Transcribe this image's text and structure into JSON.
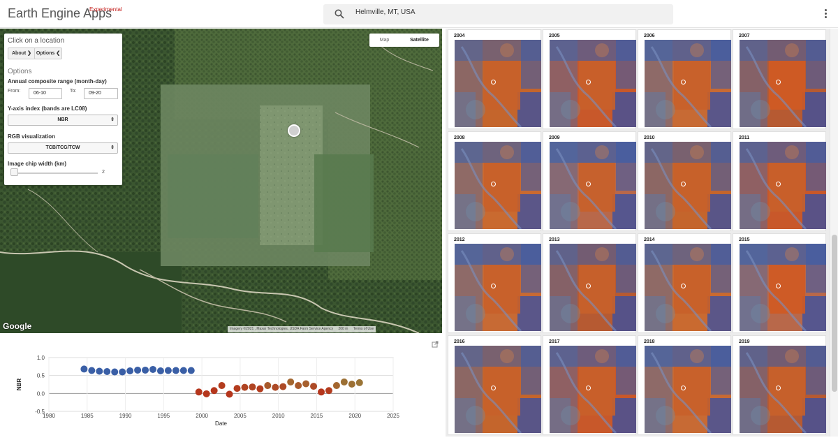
{
  "app": {
    "title": "Earth Engine Apps",
    "badge": "Experimental"
  },
  "search": {
    "value": "Helmville, MT, USA"
  },
  "panel": {
    "title": "Click on a location",
    "about_label": "About ❯",
    "options_label": "Options ❮",
    "options_heading": "Options",
    "range_label": "Annual composite range (month-day)",
    "from_label": "From:",
    "from_value": "06-10",
    "to_label": "To:",
    "to_value": "09-20",
    "yaxis_label": "Y-axis index (bands are LC08)",
    "yaxis_value": "NBR",
    "rgb_label": "RGB visualization",
    "rgb_value": "TCB/TCG/TCW",
    "chip_label": "Image chip width (km)",
    "chip_value": "2"
  },
  "map": {
    "type_map": "Map",
    "type_satellite": "Satellite",
    "logo": "Google",
    "imagery": "Imagery ©2021 , Maxar Technologies, USDA Farm Service Agency",
    "scale": "200 m",
    "terms": "Terms of Use"
  },
  "chart_data": {
    "type": "scatter",
    "xlabel": "Date",
    "ylabel": "NBR",
    "xlim": [
      1980,
      2025
    ],
    "ylim": [
      -0.5,
      1.0
    ],
    "xticks": [
      "1980",
      "1985",
      "1990",
      "1995",
      "2000",
      "2005",
      "2010",
      "2015",
      "2020",
      "2025"
    ],
    "yticks": [
      "1.0",
      "0.5",
      "0.0",
      "-0.5"
    ],
    "points": [
      {
        "x": 1984.6,
        "y": 0.68,
        "color": "#3a5fa6"
      },
      {
        "x": 1985.6,
        "y": 0.64,
        "color": "#3a5fa6"
      },
      {
        "x": 1986.6,
        "y": 0.62,
        "color": "#3a5fa6"
      },
      {
        "x": 1987.6,
        "y": 0.61,
        "color": "#3a5fa6"
      },
      {
        "x": 1988.6,
        "y": 0.6,
        "color": "#3a5fa6"
      },
      {
        "x": 1989.6,
        "y": 0.6,
        "color": "#3a5fa6"
      },
      {
        "x": 1990.6,
        "y": 0.63,
        "color": "#3a5fa6"
      },
      {
        "x": 1991.6,
        "y": 0.65,
        "color": "#3a5fa6"
      },
      {
        "x": 1992.6,
        "y": 0.65,
        "color": "#3a5fa6"
      },
      {
        "x": 1993.6,
        "y": 0.67,
        "color": "#3a5fa6"
      },
      {
        "x": 1994.6,
        "y": 0.63,
        "color": "#3a5fa6"
      },
      {
        "x": 1995.6,
        "y": 0.64,
        "color": "#3a5fa6"
      },
      {
        "x": 1996.6,
        "y": 0.64,
        "color": "#3a5fa6"
      },
      {
        "x": 1997.6,
        "y": 0.64,
        "color": "#3a5fa6"
      },
      {
        "x": 1998.6,
        "y": 0.64,
        "color": "#3a5fa6"
      },
      {
        "x": 1999.6,
        "y": 0.04,
        "color": "#b5361c"
      },
      {
        "x": 2000.6,
        "y": -0.01,
        "color": "#b5361c"
      },
      {
        "x": 2001.6,
        "y": 0.08,
        "color": "#b5361c"
      },
      {
        "x": 2002.6,
        "y": 0.22,
        "color": "#b33c1e"
      },
      {
        "x": 2003.6,
        "y": -0.02,
        "color": "#b5361c"
      },
      {
        "x": 2004.6,
        "y": 0.14,
        "color": "#b33c1e"
      },
      {
        "x": 2005.6,
        "y": 0.17,
        "color": "#b04422"
      },
      {
        "x": 2006.6,
        "y": 0.18,
        "color": "#b04422"
      },
      {
        "x": 2007.6,
        "y": 0.13,
        "color": "#b33c1e"
      },
      {
        "x": 2008.6,
        "y": 0.22,
        "color": "#a85a2c"
      },
      {
        "x": 2009.6,
        "y": 0.17,
        "color": "#ad4a26"
      },
      {
        "x": 2010.6,
        "y": 0.19,
        "color": "#ad4a26"
      },
      {
        "x": 2011.6,
        "y": 0.32,
        "color": "#a3662f"
      },
      {
        "x": 2012.6,
        "y": 0.22,
        "color": "#a85a2c"
      },
      {
        "x": 2013.6,
        "y": 0.27,
        "color": "#a65f2e"
      },
      {
        "x": 2014.6,
        "y": 0.2,
        "color": "#ad4a26"
      },
      {
        "x": 2015.6,
        "y": 0.04,
        "color": "#b5361c"
      },
      {
        "x": 2016.6,
        "y": 0.08,
        "color": "#b33c1e"
      },
      {
        "x": 2017.6,
        "y": 0.22,
        "color": "#a3662f"
      },
      {
        "x": 2018.6,
        "y": 0.32,
        "color": "#9c7034"
      },
      {
        "x": 2019.6,
        "y": 0.26,
        "color": "#9c7034"
      },
      {
        "x": 2020.6,
        "y": 0.3,
        "color": "#9a7436"
      }
    ]
  },
  "grid": {
    "years": [
      "2004",
      "2005",
      "2006",
      "2007",
      "2008",
      "2009",
      "2010",
      "2011",
      "2012",
      "2013",
      "2014",
      "2015",
      "2016",
      "2017",
      "2018",
      "2019"
    ]
  }
}
